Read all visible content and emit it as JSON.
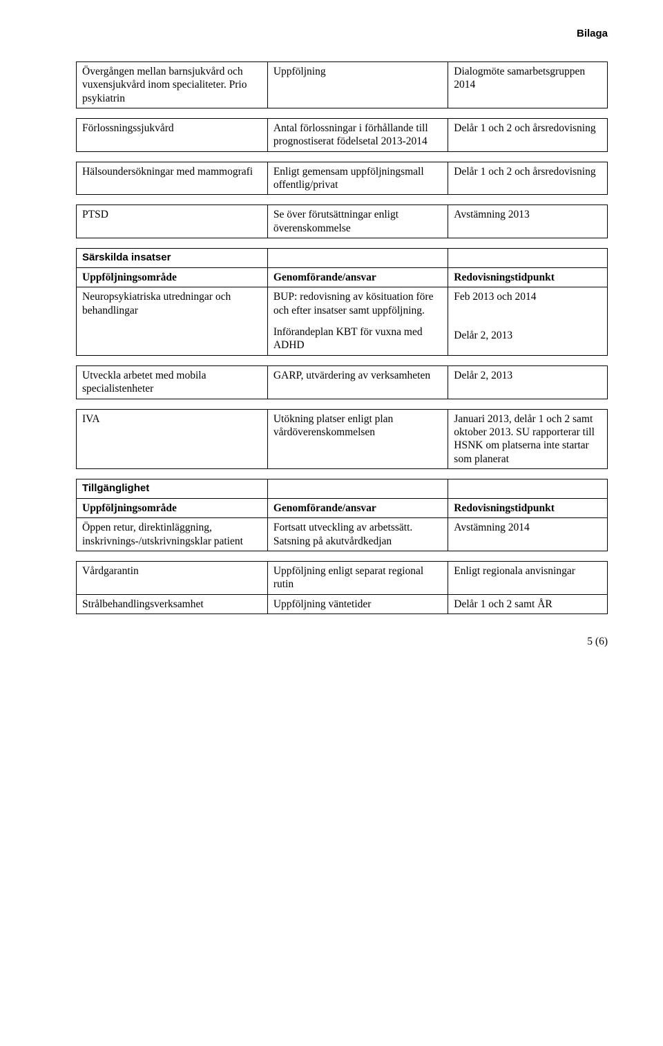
{
  "header": {
    "bilaga": "Bilaga"
  },
  "t1": {
    "r1c1a": "Övergången mellan barnsjukvård och vuxensjukvård inom specialiteter. Prio psykiatrin",
    "r1c2": "Uppföljning",
    "r1c3": "Dialogmöte samarbetsgruppen 2014"
  },
  "t2": {
    "r1c1": "Förlossningssjukvård",
    "r1c2": "Antal förlossningar i förhållande till prognostiserat födelsetal 2013-2014",
    "r1c3": "Delår 1 och 2 och årsredovisning"
  },
  "t3": {
    "r1c1": "Hälsoundersökningar med mammografi",
    "r1c2": "Enligt gemensam uppföljningsmall offentlig/privat",
    "r1c3": "Delår 1 och 2 och årsredovisning"
  },
  "t4": {
    "r1c1": "PTSD",
    "r1c2": "Se över förutsättningar enligt överenskommelse",
    "r1c3": "Avstämning 2013"
  },
  "t5": {
    "section": "Särskilda insatser",
    "h1": "Uppföljningsområde",
    "h2": "Genomförande/ansvar",
    "h3": "Redovisningstidpunkt",
    "r1c1": "Neuropsykiatriska utredningar och behandlingar",
    "r1c2a": "BUP: redovisning av kösituation före och efter insatser samt uppföljning.",
    "r1c2b": "Införandeplan KBT för vuxna med ADHD",
    "r1c3a": "Feb 2013 och 2014",
    "r1c3b": "Delår 2, 2013"
  },
  "t6": {
    "r1c1": "Utveckla arbetet med mobila specialistenheter",
    "r1c2": "GARP, utvärdering av verksamheten",
    "r1c3": "Delår 2, 2013"
  },
  "t7": {
    "r1c1": "IVA",
    "r1c2": "Utökning platser enligt plan vårdöverenskommelsen",
    "r1c3": "Januari 2013, delår 1 och 2 samt oktober 2013. SU rapporterar till HSNK om platserna inte startar som planerat"
  },
  "t8": {
    "section": "Tillgänglighet",
    "h1": "Uppföljningsområde",
    "h2": "Genomförande/ansvar",
    "h3": "Redovisningstidpunkt",
    "r1c1": "Öppen retur, direktinläggning, inskrivnings-/utskrivningsklar patient",
    "r1c2": "Fortsatt utveckling av arbetssätt. Satsning på akutvårdkedjan",
    "r1c3": "Avstämning 2014"
  },
  "t9": {
    "r1c1": "Vårdgarantin",
    "r1c2": "Uppföljning enligt separat regional rutin",
    "r1c3": "Enligt regionala anvisningar",
    "r2c1": "Strålbehandlingsverksamhet",
    "r2c2": "Uppföljning väntetider",
    "r2c3": "Delår 1 och 2 samt ÅR"
  },
  "footer": {
    "page": "5 (6)"
  }
}
